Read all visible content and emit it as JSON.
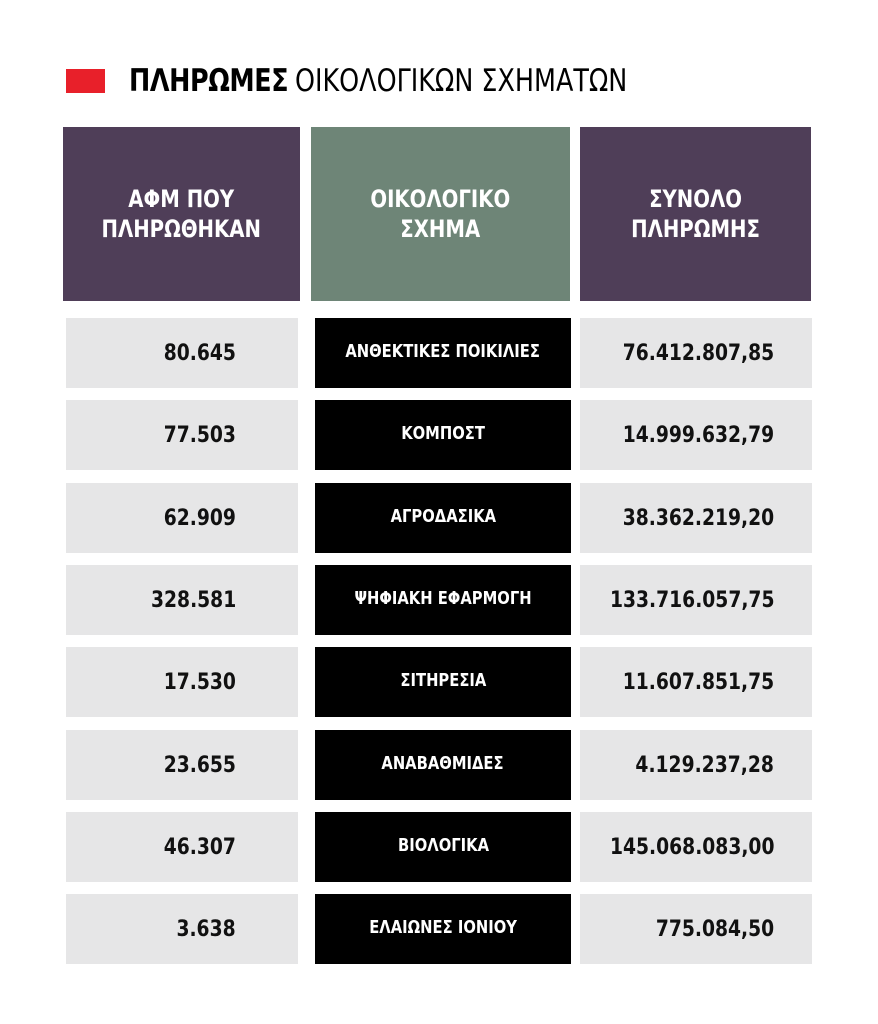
{
  "title": {
    "bold": "ΠΛΗΡΩΜΕΣ",
    "light": "ΟΙΚΟΛΟΓΙΚΩΝ ΣΧΗΜΑΤΩΝ"
  },
  "colors": {
    "accent_red": "#e8202a",
    "header_afm": "#4f3e58",
    "header_scheme": "#6e8577",
    "header_total": "#4f3e58",
    "scheme_cell_bg": "#000000",
    "number_cell_bg": "#e6e6e7"
  },
  "headers": {
    "afm": "ΑΦΜ ΠΟΥ\nΠΛΗΡΩΘΗΚΑΝ",
    "scheme": "ΟΙΚΟΛΟΓΙΚΟ\nΣΧΗΜΑ",
    "total": "ΣΥΝΟΛΟ\nΠΛΗΡΩΜΗΣ"
  },
  "chart_data": {
    "type": "table",
    "title": "ΠΛΗΡΩΜΕΣ ΟΙΚΟΛΟΓΙΚΩΝ ΣΧΗΜΑΤΩΝ",
    "columns": [
      "ΑΦΜ ΠΟΥ ΠΛΗΡΩΘΗΚΑΝ",
      "ΟΙΚΟΛΟΓΙΚΟ ΣΧΗΜΑ",
      "ΣΥΝΟΛΟ ΠΛΗΡΩΜΗΣ"
    ],
    "rows": [
      {
        "afm": "80.645",
        "scheme": "ΑΝΘΕΚΤΙΚΕΣ ΠΟΙΚΙΛΙΕΣ",
        "total": "76.412.807,85"
      },
      {
        "afm": "77.503",
        "scheme": "ΚΟΜΠΟΣΤ",
        "total": "14.999.632,79"
      },
      {
        "afm": "62.909",
        "scheme": "ΑΓΡΟΔΑΣΙΚΑ",
        "total": "38.362.219,20"
      },
      {
        "afm": "328.581",
        "scheme": "ΨΗΦΙΑΚΗ ΕΦΑΡΜΟΓΗ",
        "total": "133.716.057,75"
      },
      {
        "afm": "17.530",
        "scheme": "ΣΙΤΗΡΕΣΙΑ",
        "total": "11.607.851,75"
      },
      {
        "afm": "23.655",
        "scheme": "ΑΝΑΒΑΘΜΙΔΕΣ",
        "total": "4.129.237,28"
      },
      {
        "afm": "46.307",
        "scheme": "ΒΙΟΛΟΓΙΚΑ",
        "total": "145.068.083,00"
      },
      {
        "afm": "3.638",
        "scheme": "ΕΛΑΙΩΝΕΣ ΙΟΝΙΟΥ",
        "total": "775.084,50"
      }
    ]
  }
}
